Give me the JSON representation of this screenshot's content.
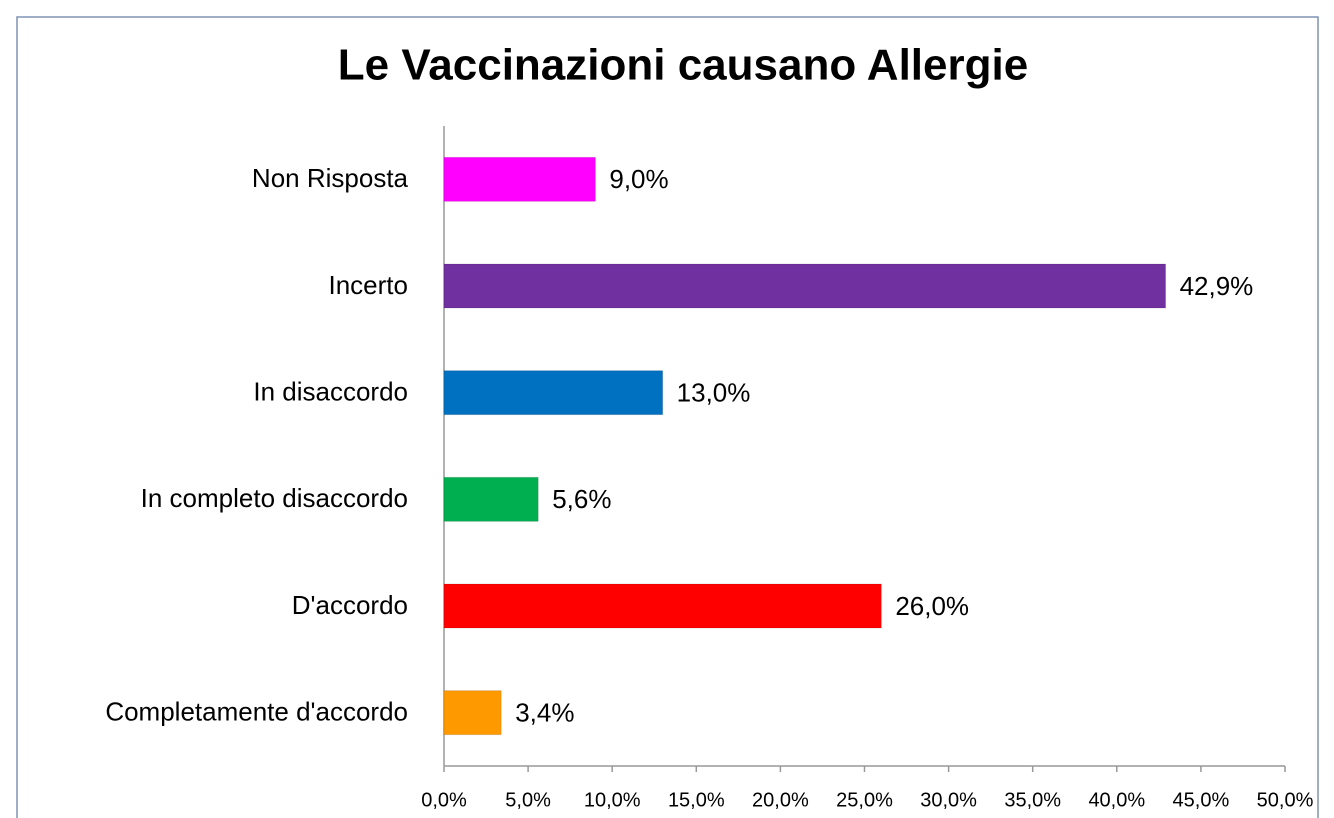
{
  "chart_data": {
    "type": "bar",
    "orientation": "horizontal",
    "title": "Le Vaccinazioni causano Allergie",
    "categories": [
      "Non Risposta",
      "Incerto",
      "In disaccordo",
      "In completo disaccordo",
      "D'accordo",
      "Completamente d'accordo"
    ],
    "values": [
      9.0,
      42.9,
      13.0,
      5.6,
      26.0,
      3.4
    ],
    "value_labels": [
      "9,0%",
      "42,9%",
      "13,0%",
      "5,6%",
      "26,0%",
      "3,4%"
    ],
    "colors": [
      "#ff00ff",
      "#7030a0",
      "#0070c0",
      "#00b050",
      "#ff0000",
      "#ff9900"
    ],
    "xlim": [
      0,
      50
    ],
    "xticks": [
      {
        "value": 0,
        "label": "0,0%"
      },
      {
        "value": 5,
        "label": "5,0%"
      },
      {
        "value": 10,
        "label": "10,0%"
      },
      {
        "value": 15,
        "label": "15,0%"
      },
      {
        "value": 20,
        "label": "20,0%"
      },
      {
        "value": 25,
        "label": "25,0%"
      },
      {
        "value": 30,
        "label": "30,0%"
      },
      {
        "value": 35,
        "label": "35,0%"
      },
      {
        "value": 40,
        "label": "40,0%"
      },
      {
        "value": 45,
        "label": "45,0%"
      },
      {
        "value": 50,
        "label": "50,0%"
      }
    ],
    "grid": false
  }
}
